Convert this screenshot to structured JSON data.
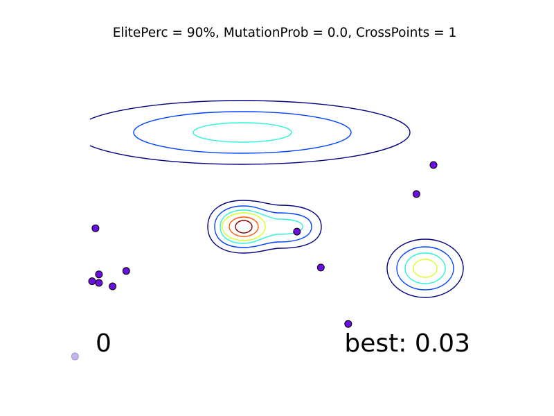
{
  "chart_data": {
    "type": "scatter",
    "title": "ElitePerc = 90%, MutationProb = 0.0, CrossPoints = 1",
    "xlabel": "",
    "ylabel": "",
    "grid": false,
    "axes_visible": false,
    "generation_label": "0",
    "best_label": "best: 0.03",
    "population_color": "#6a0ee0",
    "faded_point_color": "#c6b4ec",
    "series": [
      {
        "points": [
          {
            "x": 0.0,
            "y": 0.32
          },
          {
            "x": 0.95,
            "y": 0.83
          },
          {
            "x": 0.67,
            "y": 0.4
          },
          {
            "x": 1.0,
            "y": 1.0
          },
          {
            "x": 0.6,
            "y": 0.61
          },
          {
            "x": 0.01,
            "y": 0.63
          },
          {
            "x": 0.06,
            "y": 0.29
          },
          {
            "x": 0.1,
            "y": 0.38
          },
          {
            "x": 0.02,
            "y": 0.31
          },
          {
            "x": 0.02,
            "y": 0.36
          },
          {
            "x": 0.75,
            "y": 0.07
          }
        ]
      }
    ],
    "faded_points": [
      {
        "x": -0.05,
        "y": -0.12
      }
    ],
    "contour_colors": [
      "#00007f",
      "#0040ff",
      "#2ff2d4",
      "#d6ff2a",
      "#ff5500",
      "#7f0000"
    ]
  }
}
